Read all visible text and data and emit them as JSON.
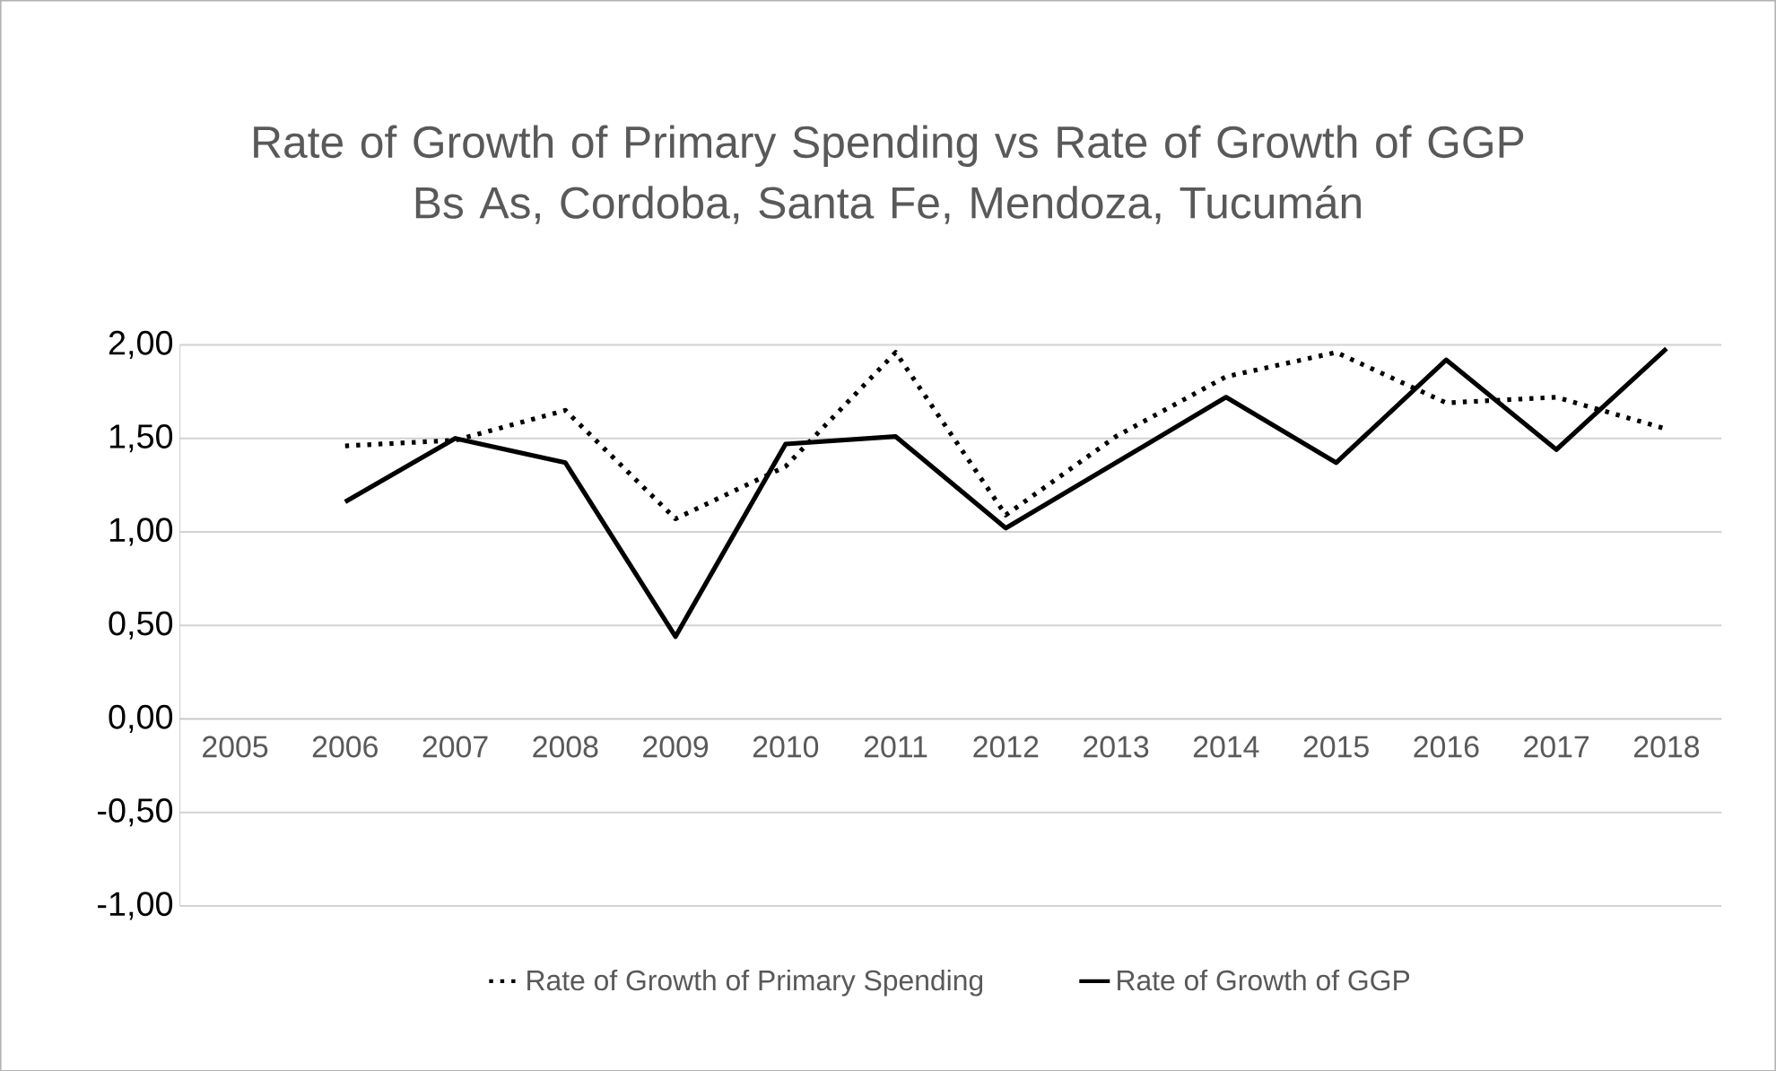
{
  "chart_data": {
    "type": "line",
    "title": "Rate of Growth of Primary Spending vs Rate of Growth of GGP",
    "subtitle": "Bs As, Cordoba, Santa Fe, Mendoza, Tucumán",
    "categories": [
      "2005",
      "2006",
      "2007",
      "2008",
      "2009",
      "2010",
      "2011",
      "2012",
      "2013",
      "2014",
      "2015",
      "2016",
      "2017",
      "2018"
    ],
    "series": [
      {
        "name": "Rate of Growth of Primary Spending",
        "color": "#000000",
        "line_style": "dotted",
        "values": [
          null,
          1.46,
          1.49,
          1.65,
          1.07,
          1.35,
          1.96,
          1.09,
          1.51,
          1.83,
          1.96,
          1.69,
          1.72,
          1.55
        ]
      },
      {
        "name": "Rate of Growth of GGP",
        "color": "#000000",
        "line_style": "solid",
        "values": [
          null,
          1.16,
          1.5,
          1.37,
          0.44,
          1.47,
          1.51,
          1.02,
          1.37,
          1.72,
          1.37,
          1.92,
          1.44,
          1.98
        ]
      }
    ],
    "ylim": [
      -1,
      2
    ],
    "yticks": [
      {
        "value": -1,
        "label": "-1,00"
      },
      {
        "value": -0.5,
        "label": "-0,50"
      },
      {
        "value": 0,
        "label": "0,00"
      },
      {
        "value": 0.5,
        "label": "0,50"
      },
      {
        "value": 1,
        "label": "1,00"
      },
      {
        "value": 1.5,
        "label": "1,50"
      },
      {
        "value": 2,
        "label": "2,00"
      }
    ],
    "grid": "y",
    "legend": "bottom",
    "marker": "none"
  }
}
